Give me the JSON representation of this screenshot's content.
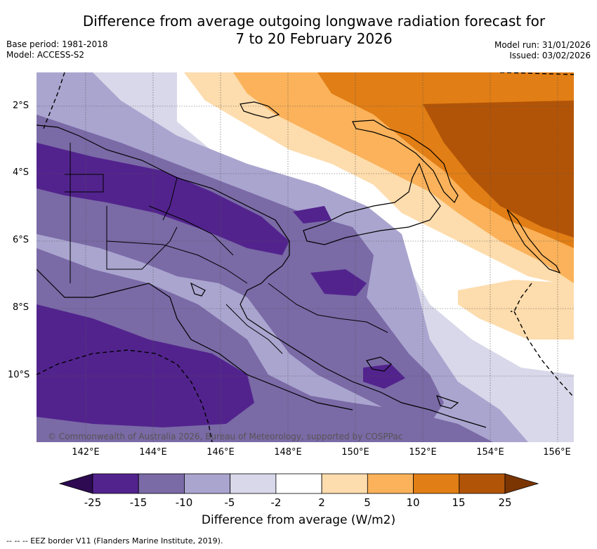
{
  "title": {
    "line1": "Difference from average outgoing longwave radiation forecast for",
    "line2": "7 to 20 February 2026"
  },
  "meta": {
    "base_period": "Base period: 1981-2018",
    "model": "Model: ACCESS-S2",
    "model_run": "Model run: 31/01/2026",
    "issued": "Issued: 03/02/2026"
  },
  "map": {
    "lat_labels": [
      "2°S",
      "4°S",
      "6°S",
      "8°S",
      "10°S"
    ],
    "lon_labels": [
      "142°E",
      "144°E",
      "146°E",
      "148°E",
      "150°E",
      "152°E",
      "154°E",
      "156°E"
    ],
    "copyright": "© Commonwealth of Australia 2026, Bureau of Meteorology, supported by COSPPac"
  },
  "colorbar": {
    "title": "Difference from average (W/m2)",
    "tick_labels": [
      "-25",
      "-15",
      "-10",
      "-5",
      "-2",
      "2",
      "5",
      "10",
      "15",
      "25"
    ],
    "colors": {
      "below": "#2d0a52",
      "bins": [
        "#52238d",
        "#7a6aa6",
        "#aaa5cf",
        "#d8d8ea",
        "#ffffff",
        "#fddcad",
        "#fbb25a",
        "#e17e15",
        "#b25407"
      ],
      "above": "#7a3503"
    }
  },
  "footnote": "-- -- -- EEZ border V11 (Flanders Marine Institute, 2019)."
}
